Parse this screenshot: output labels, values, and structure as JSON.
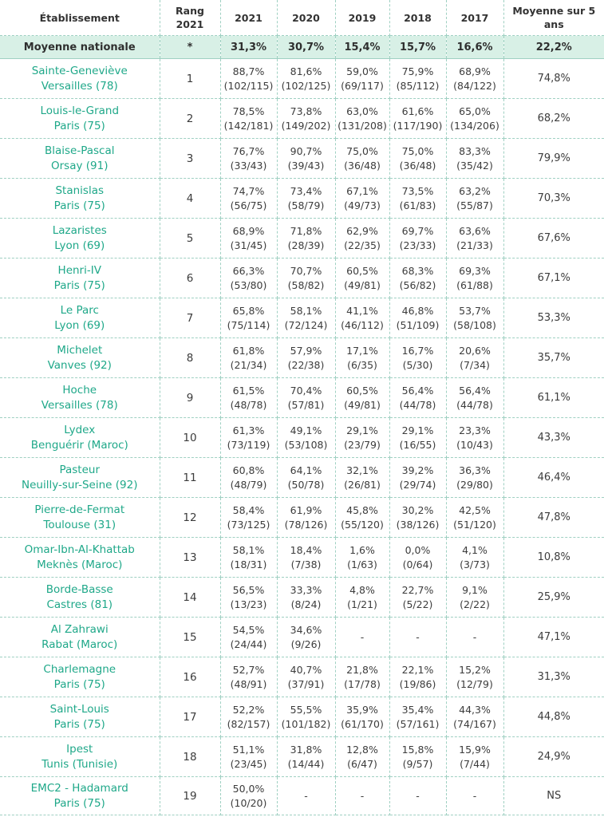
{
  "header": {
    "etablissement": "Établissement",
    "rang_l1": "Rang",
    "rang_l2": "2021",
    "y2021": "2021",
    "y2020": "2020",
    "y2019": "2019",
    "y2018": "2018",
    "y2017": "2017",
    "moyenne_l1": "Moyenne sur 5",
    "moyenne_l2": "ans"
  },
  "national": {
    "name": "Moyenne nationale",
    "rank": "*",
    "y2021": "31,3%",
    "y2020": "30,7%",
    "y2019": "15,4%",
    "y2018": "15,7%",
    "y2017": "16,6%",
    "avg": "22,2%"
  },
  "rows": [
    {
      "name": "Sainte-Geneviève",
      "city": "Versailles (78)",
      "rank": "1",
      "y2021": {
        "pct": "88,7%",
        "frac": "(102/115)"
      },
      "y2020": {
        "pct": "81,6%",
        "frac": "(102/125)"
      },
      "y2019": {
        "pct": "59,0%",
        "frac": "(69/117)"
      },
      "y2018": {
        "pct": "75,9%",
        "frac": "(85/112)"
      },
      "y2017": {
        "pct": "68,9%",
        "frac": "(84/122)"
      },
      "avg": "74,8%"
    },
    {
      "name": "Louis-le-Grand",
      "city": "Paris (75)",
      "rank": "2",
      "y2021": {
        "pct": "78,5%",
        "frac": "(142/181)"
      },
      "y2020": {
        "pct": "73,8%",
        "frac": "(149/202)"
      },
      "y2019": {
        "pct": "63,0%",
        "frac": "(131/208)"
      },
      "y2018": {
        "pct": "61,6%",
        "frac": "(117/190)"
      },
      "y2017": {
        "pct": "65,0%",
        "frac": "(134/206)"
      },
      "avg": "68,2%"
    },
    {
      "name": "Blaise-Pascal",
      "city": "Orsay (91)",
      "rank": "3",
      "y2021": {
        "pct": "76,7%",
        "frac": "(33/43)"
      },
      "y2020": {
        "pct": "90,7%",
        "frac": "(39/43)"
      },
      "y2019": {
        "pct": "75,0%",
        "frac": "(36/48)"
      },
      "y2018": {
        "pct": "75,0%",
        "frac": "(36/48)"
      },
      "y2017": {
        "pct": "83,3%",
        "frac": "(35/42)"
      },
      "avg": "79,9%"
    },
    {
      "name": "Stanislas",
      "city": "Paris (75)",
      "rank": "4",
      "y2021": {
        "pct": "74,7%",
        "frac": "(56/75)"
      },
      "y2020": {
        "pct": "73,4%",
        "frac": "(58/79)"
      },
      "y2019": {
        "pct": "67,1%",
        "frac": "(49/73)"
      },
      "y2018": {
        "pct": "73,5%",
        "frac": "(61/83)"
      },
      "y2017": {
        "pct": "63,2%",
        "frac": "(55/87)"
      },
      "avg": "70,3%"
    },
    {
      "name": "Lazaristes",
      "city": "Lyon (69)",
      "rank": "5",
      "y2021": {
        "pct": "68,9%",
        "frac": "(31/45)"
      },
      "y2020": {
        "pct": "71,8%",
        "frac": "(28/39)"
      },
      "y2019": {
        "pct": "62,9%",
        "frac": "(22/35)"
      },
      "y2018": {
        "pct": "69,7%",
        "frac": "(23/33)"
      },
      "y2017": {
        "pct": "63,6%",
        "frac": "(21/33)"
      },
      "avg": "67,6%"
    },
    {
      "name": "Henri-IV",
      "city": "Paris (75)",
      "rank": "6",
      "y2021": {
        "pct": "66,3%",
        "frac": "(53/80)"
      },
      "y2020": {
        "pct": "70,7%",
        "frac": "(58/82)"
      },
      "y2019": {
        "pct": "60,5%",
        "frac": "(49/81)"
      },
      "y2018": {
        "pct": "68,3%",
        "frac": "(56/82)"
      },
      "y2017": {
        "pct": "69,3%",
        "frac": "(61/88)"
      },
      "avg": "67,1%"
    },
    {
      "name": "Le Parc",
      "city": "Lyon (69)",
      "rank": "7",
      "y2021": {
        "pct": "65,8%",
        "frac": "(75/114)"
      },
      "y2020": {
        "pct": "58,1%",
        "frac": "(72/124)"
      },
      "y2019": {
        "pct": "41,1%",
        "frac": "(46/112)"
      },
      "y2018": {
        "pct": "46,8%",
        "frac": "(51/109)"
      },
      "y2017": {
        "pct": "53,7%",
        "frac": "(58/108)"
      },
      "avg": "53,3%"
    },
    {
      "name": "Michelet",
      "city": "Vanves (92)",
      "rank": "8",
      "y2021": {
        "pct": "61,8%",
        "frac": "(21/34)"
      },
      "y2020": {
        "pct": "57,9%",
        "frac": "(22/38)"
      },
      "y2019": {
        "pct": "17,1%",
        "frac": "(6/35)"
      },
      "y2018": {
        "pct": "16,7%",
        "frac": "(5/30)"
      },
      "y2017": {
        "pct": "20,6%",
        "frac": "(7/34)"
      },
      "avg": "35,7%"
    },
    {
      "name": "Hoche",
      "city": "Versailles (78)",
      "rank": "9",
      "y2021": {
        "pct": "61,5%",
        "frac": "(48/78)"
      },
      "y2020": {
        "pct": "70,4%",
        "frac": "(57/81)"
      },
      "y2019": {
        "pct": "60,5%",
        "frac": "(49/81)"
      },
      "y2018": {
        "pct": "56,4%",
        "frac": "(44/78)"
      },
      "y2017": {
        "pct": "56,4%",
        "frac": "(44/78)"
      },
      "avg": "61,1%"
    },
    {
      "name": "Lydex",
      "city": "Benguérir (Maroc)",
      "rank": "10",
      "y2021": {
        "pct": "61,3%",
        "frac": "(73/119)"
      },
      "y2020": {
        "pct": "49,1%",
        "frac": "(53/108)"
      },
      "y2019": {
        "pct": "29,1%",
        "frac": "(23/79)"
      },
      "y2018": {
        "pct": "29,1%",
        "frac": "(16/55)"
      },
      "y2017": {
        "pct": "23,3%",
        "frac": "(10/43)"
      },
      "avg": "43,3%"
    },
    {
      "name": "Pasteur",
      "city": "Neuilly-sur-Seine (92)",
      "rank": "11",
      "y2021": {
        "pct": "60,8%",
        "frac": "(48/79)"
      },
      "y2020": {
        "pct": "64,1%",
        "frac": "(50/78)"
      },
      "y2019": {
        "pct": "32,1%",
        "frac": "(26/81)"
      },
      "y2018": {
        "pct": "39,2%",
        "frac": "(29/74)"
      },
      "y2017": {
        "pct": "36,3%",
        "frac": "(29/80)"
      },
      "avg": "46,4%"
    },
    {
      "name": "Pierre-de-Fermat",
      "city": "Toulouse (31)",
      "rank": "12",
      "y2021": {
        "pct": "58,4%",
        "frac": "(73/125)"
      },
      "y2020": {
        "pct": "61,9%",
        "frac": "(78/126)"
      },
      "y2019": {
        "pct": "45,8%",
        "frac": "(55/120)"
      },
      "y2018": {
        "pct": "30,2%",
        "frac": "(38/126)"
      },
      "y2017": {
        "pct": "42,5%",
        "frac": "(51/120)"
      },
      "avg": "47,8%"
    },
    {
      "name": "Omar-Ibn-Al-Khattab",
      "city": "Meknès (Maroc)",
      "rank": "13",
      "y2021": {
        "pct": "58,1%",
        "frac": "(18/31)"
      },
      "y2020": {
        "pct": "18,4%",
        "frac": "(7/38)"
      },
      "y2019": {
        "pct": "1,6%",
        "frac": "(1/63)"
      },
      "y2018": {
        "pct": "0,0%",
        "frac": "(0/64)"
      },
      "y2017": {
        "pct": "4,1%",
        "frac": "(3/73)"
      },
      "avg": "10,8%"
    },
    {
      "name": "Borde-Basse",
      "city": "Castres (81)",
      "rank": "14",
      "y2021": {
        "pct": "56,5%",
        "frac": "(13/23)"
      },
      "y2020": {
        "pct": "33,3%",
        "frac": "(8/24)"
      },
      "y2019": {
        "pct": "4,8%",
        "frac": "(1/21)"
      },
      "y2018": {
        "pct": "22,7%",
        "frac": "(5/22)"
      },
      "y2017": {
        "pct": "9,1%",
        "frac": "(2/22)"
      },
      "avg": "25,9%"
    },
    {
      "name": "Al Zahrawi",
      "city": "Rabat (Maroc)",
      "rank": "15",
      "y2021": {
        "pct": "54,5%",
        "frac": "(24/44)"
      },
      "y2020": {
        "pct": "34,6%",
        "frac": "(9/26)"
      },
      "y2019": {
        "pct": "-",
        "frac": ""
      },
      "y2018": {
        "pct": "-",
        "frac": ""
      },
      "y2017": {
        "pct": "-",
        "frac": ""
      },
      "avg": "47,1%"
    },
    {
      "name": "Charlemagne",
      "city": "Paris (75)",
      "rank": "16",
      "y2021": {
        "pct": "52,7%",
        "frac": "(48/91)"
      },
      "y2020": {
        "pct": "40,7%",
        "frac": "(37/91)"
      },
      "y2019": {
        "pct": "21,8%",
        "frac": "(17/78)"
      },
      "y2018": {
        "pct": "22,1%",
        "frac": "(19/86)"
      },
      "y2017": {
        "pct": "15,2%",
        "frac": "(12/79)"
      },
      "avg": "31,3%"
    },
    {
      "name": "Saint-Louis",
      "city": "Paris (75)",
      "rank": "17",
      "y2021": {
        "pct": "52,2%",
        "frac": "(82/157)"
      },
      "y2020": {
        "pct": "55,5%",
        "frac": "(101/182)"
      },
      "y2019": {
        "pct": "35,9%",
        "frac": "(61/170)"
      },
      "y2018": {
        "pct": "35,4%",
        "frac": "(57/161)"
      },
      "y2017": {
        "pct": "44,3%",
        "frac": "(74/167)"
      },
      "avg": "44,8%"
    },
    {
      "name": "Ipest",
      "city": "Tunis (Tunisie)",
      "rank": "18",
      "y2021": {
        "pct": "51,1%",
        "frac": "(23/45)"
      },
      "y2020": {
        "pct": "31,8%",
        "frac": "(14/44)"
      },
      "y2019": {
        "pct": "12,8%",
        "frac": "(6/47)"
      },
      "y2018": {
        "pct": "15,8%",
        "frac": "(9/57)"
      },
      "y2017": {
        "pct": "15,9%",
        "frac": "(7/44)"
      },
      "avg": "24,9%"
    },
    {
      "name": "EMC2 - Hadamard",
      "city": "Paris (75)",
      "rank": "19",
      "y2021": {
        "pct": "50,0%",
        "frac": "(10/20)"
      },
      "y2020": {
        "pct": "-",
        "frac": ""
      },
      "y2019": {
        "pct": "-",
        "frac": ""
      },
      "y2018": {
        "pct": "-",
        "frac": ""
      },
      "y2017": {
        "pct": "-",
        "frac": ""
      },
      "avg": "NS"
    }
  ]
}
